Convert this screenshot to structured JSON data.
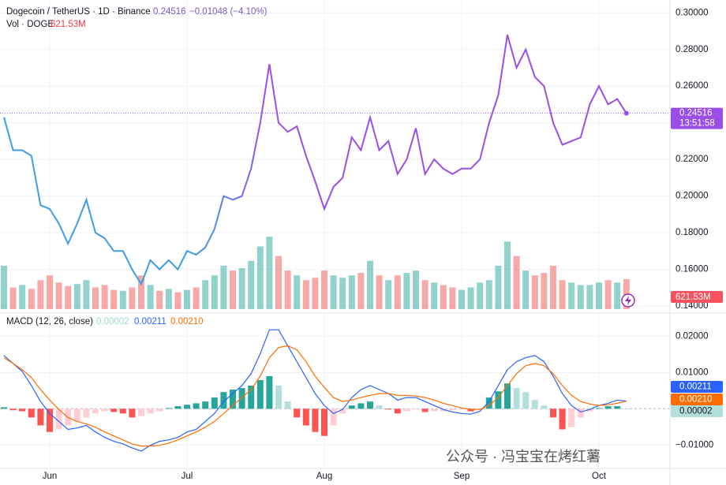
{
  "chart_data": [
    {
      "type": "line",
      "title": "Dogecoin / TetherUS · 1D · Binance",
      "change": "−0.01048 (−4.10%)",
      "countdown": "13:51:58",
      "categories": [
        null,
        null,
        null,
        null,
        null,
        "Jun",
        null,
        null,
        null,
        null,
        null,
        null,
        null,
        null,
        null,
        null,
        null,
        null,
        null,
        null,
        "Jul",
        null,
        null,
        null,
        null,
        null,
        null,
        null,
        null,
        null,
        null,
        null,
        null,
        null,
        null,
        "Aug",
        null,
        null,
        null,
        null,
        null,
        null,
        null,
        null,
        null,
        null,
        null,
        null,
        null,
        null,
        "Sep",
        null,
        null,
        null,
        null,
        null,
        null,
        null,
        null,
        null,
        null,
        null,
        null,
        null,
        null,
        "Oct",
        null,
        null,
        null
      ],
      "values": [
        0.243,
        0.225,
        0.225,
        0.222,
        0.195,
        0.193,
        0.185,
        0.174,
        0.185,
        0.198,
        0.18,
        0.177,
        0.17,
        0.17,
        0.16,
        0.152,
        0.165,
        0.16,
        0.165,
        0.16,
        0.17,
        0.168,
        0.172,
        0.182,
        0.2,
        0.198,
        0.2,
        0.215,
        0.24,
        0.272,
        0.24,
        0.235,
        0.238,
        0.222,
        0.208,
        0.193,
        0.205,
        0.21,
        0.232,
        0.225,
        0.243,
        0.225,
        0.23,
        0.212,
        0.22,
        0.237,
        0.212,
        0.22,
        0.215,
        0.212,
        0.215,
        0.215,
        0.22,
        0.24,
        0.255,
        0.288,
        0.27,
        0.28,
        0.265,
        0.26,
        0.24,
        0.228,
        0.23,
        0.232,
        0.25,
        0.26,
        0.25,
        0.253,
        0.24516
      ],
      "colors": [
        "#3d9be9",
        "#9b4de8"
      ],
      "ylim": [
        0.137,
        0.307
      ],
      "yticks": [
        {
          "value": 0.14,
          "label": "0.14000"
        },
        {
          "value": 0.16,
          "label": "0.16000"
        },
        {
          "value": 0.18,
          "label": "0.18000"
        },
        {
          "value": 0.2,
          "label": "0.20000"
        },
        {
          "value": 0.22,
          "label": "0.22000"
        },
        {
          "value": 0.24,
          "label": "0.24000"
        },
        {
          "value": 0.26,
          "label": "0.26000"
        },
        {
          "value": 0.28,
          "label": "0.28000"
        },
        {
          "value": 0.3,
          "label": "0.30000"
        }
      ],
      "grid": true,
      "volume": {
        "label": "Vol · DOGE",
        "values": [
          900,
          450,
          500,
          420,
          600,
          700,
          550,
          480,
          520,
          600,
          450,
          500,
          400,
          380,
          450,
          700,
          500,
          380,
          420,
          350,
          400,
          450,
          600,
          700,
          900,
          800,
          850,
          1000,
          1300,
          1500,
          1100,
          800,
          700,
          600,
          650,
          800,
          700,
          650,
          700,
          750,
          1000,
          700,
          600,
          700,
          750,
          800,
          600,
          550,
          500,
          450,
          400,
          450,
          550,
          600,
          900,
          1400,
          1100,
          800,
          700,
          750,
          900,
          600,
          550,
          500,
          500,
          550,
          600,
          550,
          621.53
        ],
        "value_labels": [
          null,
          null,
          null,
          null,
          null,
          null,
          null,
          null,
          null,
          null,
          null,
          null,
          null,
          null,
          null,
          null,
          null,
          null,
          null,
          null,
          null,
          null,
          null,
          null,
          null,
          null,
          null,
          null,
          null,
          null,
          null,
          null,
          null,
          null,
          null,
          null,
          null,
          null,
          null,
          null,
          null,
          null,
          null,
          null,
          null,
          null,
          null,
          null,
          null,
          null,
          null,
          null,
          null,
          null,
          null,
          null,
          null,
          null,
          null,
          null,
          null,
          null,
          null,
          null,
          null,
          null,
          null,
          null,
          "621.53M"
        ],
        "ylim": [
          0,
          5000
        ],
        "colors": [
          "rgba(38,166,154,0.5)",
          "rgba(239,83,80,0.5)"
        ]
      }
    },
    {
      "type": "macd",
      "title": "MACD (12, 26, close)",
      "ylim": [
        -0.0167,
        0.0262
      ],
      "yticks": [
        {
          "value": -0.01,
          "label": "−0.01000"
        },
        {
          "value": 0.01,
          "label": "0.01000"
        },
        {
          "value": 0.02,
          "label": "0.02000"
        }
      ],
      "histogram": {
        "values": [
          0.0004,
          -0.0004,
          -0.0007,
          -0.0024,
          -0.0046,
          -0.0064,
          -0.0057,
          -0.0046,
          -0.0035,
          -0.0024,
          -0.0013,
          -0.0007,
          -0.0009,
          -0.0013,
          -0.0024,
          -0.002,
          -0.0013,
          -0.0007,
          0.0002,
          0.0007,
          0.0011,
          0.0015,
          0.002,
          0.0031,
          0.0046,
          0.0053,
          0.0057,
          0.0064,
          0.0079,
          0.009,
          0.0064,
          0.002,
          -0.0024,
          -0.0046,
          -0.0064,
          -0.0075,
          -0.0046,
          -0.0013,
          0.0009,
          0.0015,
          0.002,
          0.0009,
          -0.0002,
          -0.0013,
          -0.0007,
          -0.0002,
          -0.0009,
          -0.0007,
          -0.0007,
          -0.0004,
          -0.0002,
          -0.0007,
          -0.0002,
          0.0031,
          0.0048,
          0.007,
          0.0057,
          0.0046,
          0.0024,
          0.0009,
          -0.0024,
          -0.0057,
          -0.0051,
          -0.0024,
          -0.0007,
          0.0002,
          0.0007,
          0.0007,
          2e-05
        ],
        "colors": [
          "#26a69a",
          "#b2dfdb",
          "#ff5252",
          "#ffcdd2"
        ]
      },
      "series": [
        {
          "color": "#2962ff",
          "values": [
            0.0147,
            0.0125,
            0.0103,
            0.0064,
            0.002,
            -0.0013,
            -0.0035,
            -0.0057,
            -0.0053,
            -0.0046,
            -0.0064,
            -0.0079,
            -0.009,
            -0.0097,
            -0.0108,
            -0.0117,
            -0.0101,
            -0.009,
            -0.0086,
            -0.0079,
            -0.0064,
            -0.0057,
            -0.0035,
            -0.0013,
            0.002,
            0.0042,
            0.0064,
            0.0097,
            0.0152,
            0.0218,
            0.0218,
            0.0174,
            0.013,
            0.0086,
            0.0042,
            0.0009,
            -0.0013,
            -0.0002,
            0.0031,
            0.0053,
            0.0064,
            0.0053,
            0.0042,
            0.0024,
            0.0031,
            0.0031,
            0.002,
            0.0009,
            -0.0002,
            -0.0009,
            -0.0013,
            -0.0015,
            -0.0007,
            0.002,
            0.0064,
            0.0108,
            0.013,
            0.0141,
            0.0147,
            0.013,
            0.009,
            0.0042,
            0.0009,
            -0.0009,
            -0.0002,
            0.0009,
            0.0015,
            0.0024,
            0.00211
          ]
        },
        {
          "color": "#ff6d00",
          "values": [
            0.0141,
            0.0125,
            0.0108,
            0.0086,
            0.0053,
            0.0024,
            -0.0002,
            -0.0024,
            -0.0035,
            -0.0042,
            -0.0051,
            -0.0064,
            -0.0075,
            -0.0086,
            -0.0097,
            -0.0103,
            -0.0103,
            -0.0101,
            -0.0095,
            -0.0086,
            -0.0075,
            -0.0064,
            -0.0051,
            -0.0035,
            -0.0013,
            0.0009,
            0.0031,
            0.0053,
            0.009,
            0.0141,
            0.0169,
            0.0174,
            0.0163,
            0.013,
            0.009,
            0.0059,
            0.0031,
            0.002,
            0.0024,
            0.0031,
            0.0037,
            0.0042,
            0.0042,
            0.0037,
            0.0037,
            0.0035,
            0.0031,
            0.0024,
            0.0015,
            0.0009,
            0.0002,
            -0.0002,
            -0.0002,
            0.0009,
            0.0031,
            0.0064,
            0.0097,
            0.0119,
            0.0125,
            0.0119,
            0.0097,
            0.0064,
            0.0037,
            0.002,
            0.0013,
            0.0009,
            0.0011,
            0.0015,
            0.0021
          ],
          "value_labels": [
            null,
            null,
            null,
            null,
            null,
            null,
            null,
            null,
            null,
            null,
            null,
            null,
            null,
            null,
            null,
            null,
            null,
            null,
            null,
            null,
            null,
            null,
            null,
            null,
            null,
            null,
            null,
            null,
            null,
            null,
            null,
            null,
            null,
            null,
            null,
            null,
            null,
            null,
            null,
            null,
            null,
            null,
            null,
            null,
            null,
            null,
            null,
            null,
            null,
            null,
            null,
            null,
            null,
            null,
            null,
            null,
            null,
            null,
            null,
            null,
            null,
            null,
            null,
            null,
            null,
            null,
            null,
            null,
            "0.00210"
          ]
        }
      ]
    }
  ],
  "watermark": "公众号 · 冯宝宝在烤红薯"
}
